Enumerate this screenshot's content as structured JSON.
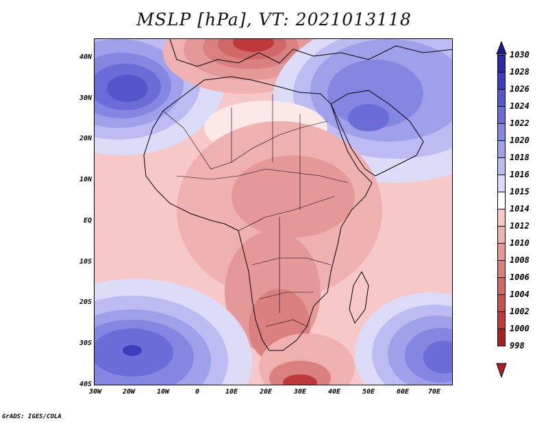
{
  "title": "MSLP [hPa], VT: 2021013118",
  "credit": "GrADS: IGES/COLA",
  "map": {
    "lat_labels": [
      "40N",
      "30N",
      "20N",
      "10N",
      "EQ",
      "10S",
      "20S",
      "30S",
      "40S"
    ],
    "lon_labels": [
      "30W",
      "20W",
      "10W",
      "0",
      "10E",
      "20E",
      "30E",
      "40E",
      "50E",
      "60E",
      "70E"
    ]
  },
  "colorbar": {
    "levels": [
      "1030",
      "1028",
      "1026",
      "1024",
      "1022",
      "1020",
      "1018",
      "1016",
      "1015",
      "1014",
      "1012",
      "1010",
      "1008",
      "1006",
      "1004",
      "1002",
      "1000",
      "998"
    ],
    "colors": [
      "#1b1b8c",
      "#2a2aa8",
      "#3d3dbe",
      "#5555cc",
      "#6c6cd8",
      "#8585e2",
      "#a0a0ea",
      "#bcbcf2",
      "#dcdcf8",
      "#ffffff",
      "#f7c8c8",
      "#efb0b0",
      "#e49898",
      "#da8080",
      "#d06868",
      "#c85050",
      "#be3a3a",
      "#a82020"
    ]
  }
}
